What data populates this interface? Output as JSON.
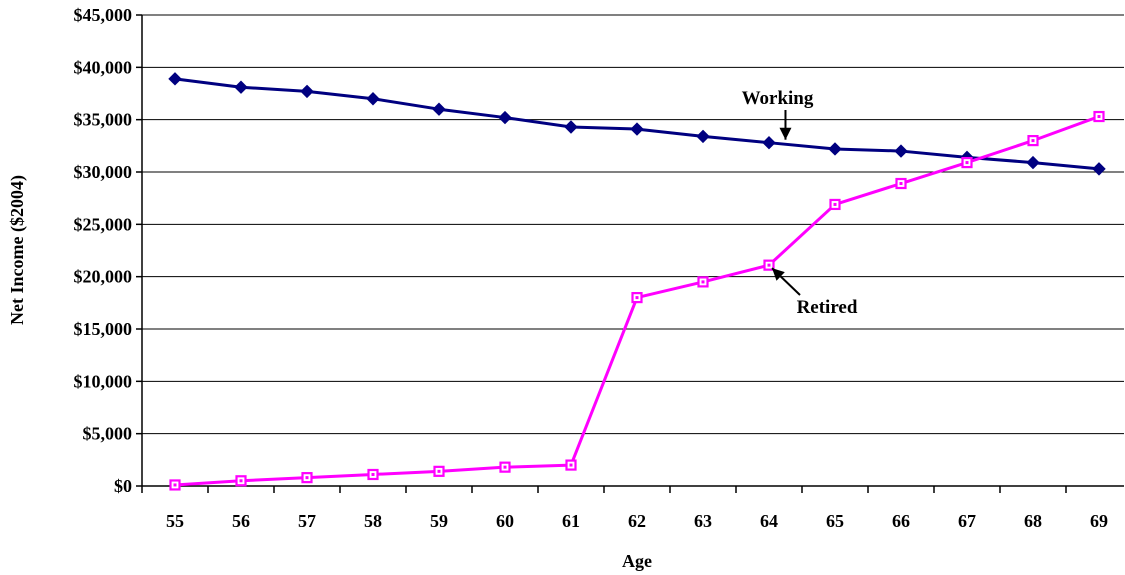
{
  "chart_data": {
    "type": "line",
    "xlabel": "Age",
    "ylabel": "Net Income ($2004)",
    "categories": [
      "55",
      "56",
      "57",
      "58",
      "59",
      "60",
      "61",
      "62",
      "63",
      "64",
      "65",
      "66",
      "67",
      "68",
      "69"
    ],
    "ylim": [
      0,
      45000
    ],
    "yticks": [
      0,
      5000,
      10000,
      15000,
      20000,
      25000,
      30000,
      35000,
      40000,
      45000
    ],
    "ytick_labels": [
      "$0",
      "$5,000",
      "$10,000",
      "$15,000",
      "$20,000",
      "$25,000",
      "$30,000",
      "$35,000",
      "$40,000",
      "$45,000"
    ],
    "grid": "horizontal",
    "legend": "none",
    "series": [
      {
        "name": "Working",
        "color": "#000080",
        "marker": "diamond",
        "values": [
          38900,
          38100,
          37700,
          37000,
          36000,
          35200,
          34300,
          34100,
          33400,
          32800,
          32200,
          32000,
          31400,
          30900,
          30300
        ]
      },
      {
        "name": "Retired",
        "color": "#FF00FF",
        "marker": "square",
        "values": [
          100,
          500,
          800,
          1100,
          1400,
          1800,
          2000,
          18000,
          19500,
          21100,
          26900,
          28900,
          30900,
          33000,
          35300
        ]
      }
    ],
    "annotations": [
      {
        "text": "Working",
        "series": 0,
        "point_index": 9
      },
      {
        "text": "Retired",
        "series": 1,
        "point_index": 9
      }
    ]
  }
}
